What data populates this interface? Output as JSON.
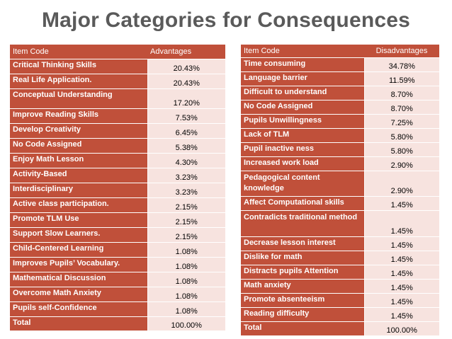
{
  "title": "Major Categories for Consequences",
  "advantages": {
    "header_item": "Item Code",
    "header_value": "Advantages",
    "rows": [
      {
        "item": "Critical Thinking Skills",
        "value": "20.43%"
      },
      {
        "item": "Real Life Application.",
        "value": "20.43%"
      },
      {
        "item": "Conceptual Understanding",
        "value": "17.20%"
      },
      {
        "item": "Improve Reading Skills",
        "value": "7.53%"
      },
      {
        "item": "Develop Creativity",
        "value": "6.45%"
      },
      {
        "item": "No Code Assigned",
        "value": "5.38%"
      },
      {
        "item": "Enjoy Math Lesson",
        "value": "4.30%"
      },
      {
        "item": "Activity-Based",
        "value": "3.23%"
      },
      {
        "item": "Interdisciplinary",
        "value": "3.23%"
      },
      {
        "item": "Active class participation.",
        "value": "2.15%"
      },
      {
        "item": "Promote TLM Use",
        "value": "2.15%"
      },
      {
        "item": "Support Slow Learners.",
        "value": "2.15%"
      },
      {
        "item": "Child-Centered Learning",
        "value": "1.08%"
      },
      {
        "item": "Improves Pupils’ Vocabulary.",
        "value": "1.08%"
      },
      {
        "item": "Mathematical Discussion",
        "value": "1.08%"
      },
      {
        "item": "Overcome Math Anxiety",
        "value": "1.08%"
      },
      {
        "item": "Pupils self-Confidence",
        "value": "1.08%"
      },
      {
        "item": "Total",
        "value": "100.00%"
      }
    ]
  },
  "disadvantages": {
    "header_item": "Item Code",
    "header_value": "Disadvantages",
    "rows": [
      {
        "item": "Time consuming",
        "value": "34.78%"
      },
      {
        "item": "Language barrier",
        "value": "11.59%"
      },
      {
        "item": "Difficult  to understand",
        "value": "8.70%"
      },
      {
        "item": "No Code Assigned",
        "value": "8.70%"
      },
      {
        "item": "Pupils Unwillingness",
        "value": "7.25%"
      },
      {
        "item": "Lack of TLM",
        "value": "5.80%"
      },
      {
        "item": "Pupil inactive ness",
        "value": "5.80%"
      },
      {
        "item": "Increased work load",
        "value": "2.90%"
      },
      {
        "item": "Pedagogical content knowledge",
        "value": "2.90%"
      },
      {
        "item": "Affect Computational skills",
        "value": "1.45%"
      },
      {
        "item": "Contradicts traditional method",
        "value": "1.45%"
      },
      {
        "item": "Decrease lesson interest",
        "value": "1.45%"
      },
      {
        "item": "Dislike for math",
        "value": "1.45%"
      },
      {
        "item": "Distracts pupils Attention",
        "value": "1.45%"
      },
      {
        "item": "Math anxiety",
        "value": "1.45%"
      },
      {
        "item": "Promote absenteeism",
        "value": "1.45%"
      },
      {
        "item": "Reading difficulty",
        "value": "1.45%"
      },
      {
        "item": "Total",
        "value": "100.00%"
      }
    ]
  }
}
